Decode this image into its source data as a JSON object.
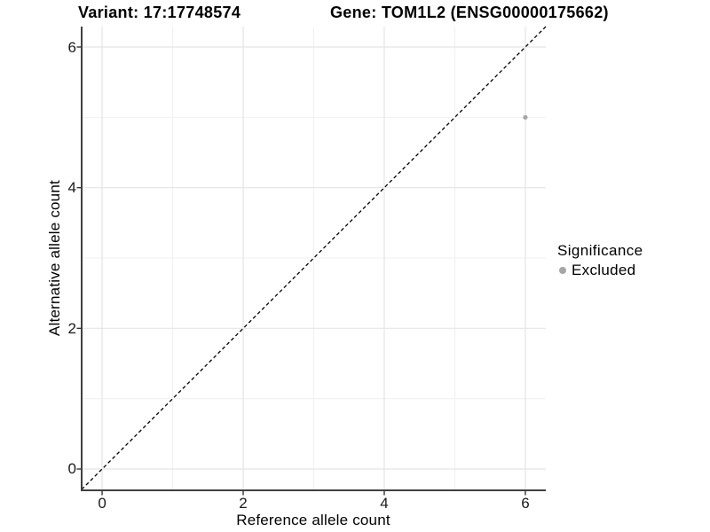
{
  "chart_data": {
    "type": "scatter",
    "title_left": "Variant: 17:17748574",
    "title_right": "Gene: TOM1L2 (ENSG00000175662)",
    "xlabel": "Reference allele count",
    "ylabel": "Alternative allele count",
    "xlim": [
      -0.29,
      6.29
    ],
    "ylim": [
      -0.29,
      6.29
    ],
    "x_major_ticks": [
      0,
      2,
      4,
      6
    ],
    "y_major_ticks": [
      0,
      2,
      4,
      6
    ],
    "x_minor_ticks": [
      1,
      3,
      5
    ],
    "y_minor_ticks": [
      1,
      3,
      5
    ],
    "grid": "major and minor gridlines on white background",
    "identity_line": {
      "style": "dashed",
      "slope": 1,
      "intercept": 0,
      "color": "#000000"
    },
    "series": [
      {
        "name": "Excluded",
        "color": "#a6a6a6",
        "points": [
          {
            "x": 6,
            "y": 5
          }
        ]
      }
    ],
    "legend": {
      "title": "Significance",
      "position": "right",
      "items": [
        {
          "label": "Excluded",
          "color": "#a6a6a6"
        }
      ]
    },
    "colors": {
      "background": "#ffffff",
      "grid_major": "#e4e4e4",
      "grid_minor": "#f0f0f0",
      "axis_line": "#404040",
      "tick_mark": "#333333",
      "tick_text": "#1a1a1a",
      "title_text": "#000000"
    }
  }
}
